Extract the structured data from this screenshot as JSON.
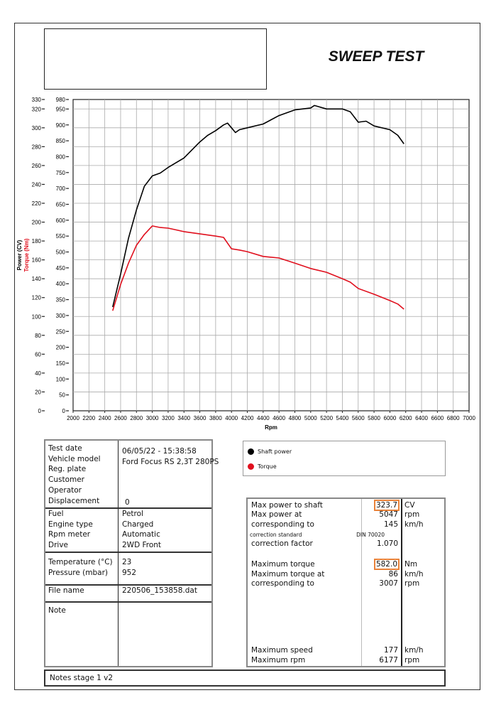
{
  "header": {
    "title": "SWEEP TEST"
  },
  "chart_data": {
    "type": "line",
    "xlabel": "Rpm",
    "ylabel_left": "Power (CV)",
    "ylabel_right": "Torque (Nm)",
    "xlim": [
      2000,
      7000
    ],
    "ylim_power": [
      0,
      330
    ],
    "ylim_torque": [
      0,
      980
    ],
    "x_ticks": [
      2000,
      2200,
      2400,
      2600,
      2800,
      3000,
      3200,
      3400,
      3600,
      3800,
      4000,
      4200,
      4400,
      4600,
      4800,
      5000,
      5200,
      5400,
      5600,
      5800,
      6000,
      6200,
      6400,
      6600,
      6800,
      7000
    ],
    "power_ticks": [
      0,
      20,
      40,
      60,
      80,
      100,
      120,
      140,
      160,
      180,
      200,
      220,
      240,
      260,
      280,
      300,
      320,
      330
    ],
    "torque_ticks": [
      0,
      50,
      100,
      150,
      200,
      250,
      300,
      350,
      400,
      450,
      500,
      550,
      600,
      650,
      700,
      750,
      800,
      850,
      900,
      950,
      980
    ],
    "grid": true,
    "series": [
      {
        "name": "Shaft power",
        "axis": "power",
        "color": "#000000",
        "x": [
          2500,
          2600,
          2700,
          2800,
          2900,
          3000,
          3100,
          3200,
          3400,
          3600,
          3700,
          3800,
          3900,
          3950,
          4000,
          4050,
          4100,
          4200,
          4400,
          4600,
          4800,
          5000,
          5047,
          5200,
          5400,
          5500,
          5600,
          5700,
          5800,
          6000,
          6100,
          6177
        ],
        "y": [
          110,
          145,
          183,
          213,
          238,
          249,
          252,
          258,
          268,
          285,
          292,
          297,
          303,
          305,
          300,
          295,
          298,
          300,
          304,
          313,
          319,
          321,
          323.7,
          320,
          320,
          317,
          306,
          307,
          302,
          298,
          292,
          283
        ]
      },
      {
        "name": "Torque",
        "axis": "torque",
        "color": "#e0101e",
        "x": [
          2500,
          2600,
          2700,
          2800,
          2900,
          3000,
          3100,
          3200,
          3400,
          3600,
          3800,
          3900,
          4000,
          4100,
          4200,
          4400,
          4600,
          4800,
          5000,
          5200,
          5400,
          5500,
          5600,
          5800,
          6000,
          6100,
          6177
        ],
        "y": [
          315,
          398,
          465,
          521,
          555,
          582,
          577,
          575,
          564,
          557,
          550,
          546,
          510,
          506,
          501,
          486,
          481,
          465,
          448,
          436,
          416,
          405,
          385,
          367,
          347,
          336,
          320
        ]
      }
    ]
  },
  "legend": {
    "items": [
      {
        "label": "Shaft power",
        "color": "#000000"
      },
      {
        "label": "Torque",
        "color": "#e0101e"
      }
    ]
  },
  "info": {
    "s1": {
      "labels": [
        "Test date",
        "Vehicle model",
        "Reg. plate",
        "Customer",
        "Operator",
        "Displacement"
      ],
      "values": [
        "06/05/22 - 15:38:58",
        "Ford Focus RS 2,3T 280PS",
        "",
        "",
        "",
        "0"
      ]
    },
    "s2": {
      "labels": [
        "Fuel",
        "Engine type",
        "Rpm meter",
        "Drive"
      ],
      "values": [
        "Petrol",
        "Charged",
        "Automatic",
        "2WD Front"
      ]
    },
    "s3": {
      "labels": [
        "Temperature (°C)",
        "Pressure (mbar)"
      ],
      "values": [
        "23",
        "952"
      ]
    },
    "s4": {
      "labels": [
        "File name"
      ],
      "values": [
        "220506_153858.dat"
      ]
    },
    "s5": {
      "labels": [
        "Note"
      ],
      "values": [
        ""
      ]
    }
  },
  "results": [
    {
      "label": "Max power to shaft",
      "value": "323.7",
      "unit": "CV",
      "highlight": true
    },
    {
      "label": "Max power at",
      "value": "5047",
      "unit": "rpm"
    },
    {
      "label": "corresponding to",
      "value": "145",
      "unit": "km/h"
    },
    {
      "label": "correction standard",
      "value": "DIN 70020",
      "unit": "",
      "small": true
    },
    {
      "label": "correction factor",
      "value": "1.070",
      "unit": ""
    },
    {
      "label": "Maximum torque",
      "value": "582.0",
      "unit": "Nm",
      "highlight": true
    },
    {
      "label": "Maximum torque at",
      "value": "86",
      "unit": "km/h"
    },
    {
      "label": "corresponding to",
      "value": "3007",
      "unit": "rpm"
    },
    {
      "label": "Maximum speed",
      "value": "177",
      "unit": "km/h"
    },
    {
      "label": "Maximum rpm",
      "value": "6177",
      "unit": "rpm"
    }
  ],
  "notes": {
    "text": "Notes  stage 1 v2"
  }
}
